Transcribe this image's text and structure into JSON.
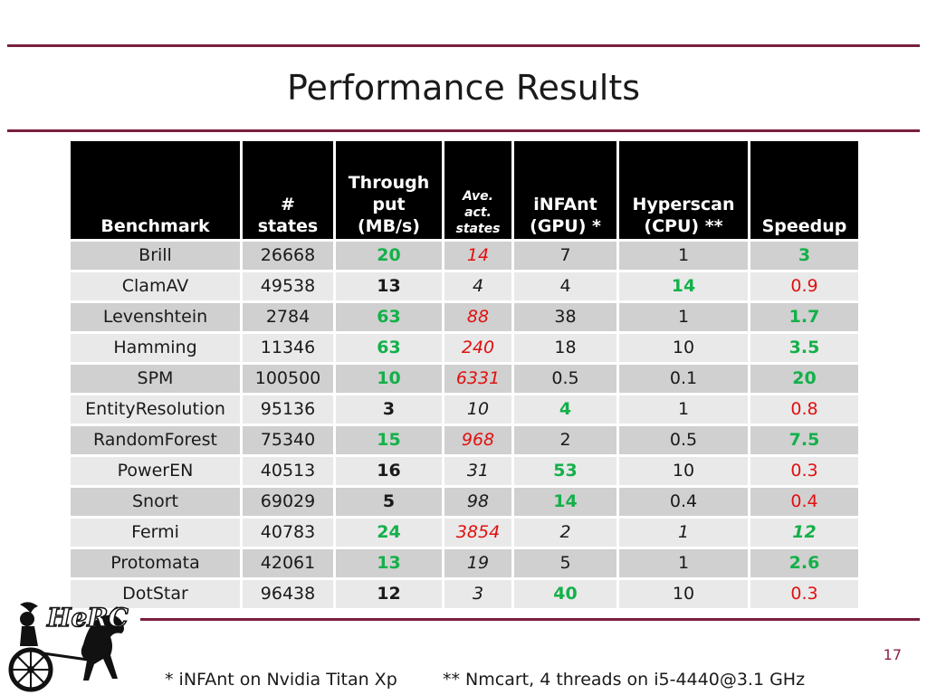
{
  "title": "Performance Results",
  "headers": {
    "benchmark": "Benchmark",
    "states": [
      "#",
      "states"
    ],
    "throughput": [
      "Through",
      "put",
      "(MB/s)"
    ],
    "ave_act": [
      "Ave.",
      "act.",
      "states"
    ],
    "infant": [
      "iNFAnt",
      "(GPU) *"
    ],
    "hyperscan": [
      "Hyperscan",
      "(CPU) **"
    ],
    "speedup": "Speedup"
  },
  "rows": [
    {
      "benchmark": "Brill",
      "states": "26668",
      "throughput": "20",
      "ave": "14",
      "infant": "7",
      "hyperscan": "1",
      "speedup": "3"
    },
    {
      "benchmark": "ClamAV",
      "states": "49538",
      "throughput": "13",
      "ave": "4",
      "infant": "4",
      "hyperscan": "14",
      "speedup": "0.9"
    },
    {
      "benchmark": "Levenshtein",
      "states": "2784",
      "throughput": "63",
      "ave": "88",
      "infant": "38",
      "hyperscan": "1",
      "speedup": "1.7"
    },
    {
      "benchmark": "Hamming",
      "states": "11346",
      "throughput": "63",
      "ave": "240",
      "infant": "18",
      "hyperscan": "10",
      "speedup": "3.5"
    },
    {
      "benchmark": "SPM",
      "states": "100500",
      "throughput": "10",
      "ave": "6331",
      "infant": "0.5",
      "hyperscan": "0.1",
      "speedup": "20"
    },
    {
      "benchmark": "EntityResolution",
      "states": "95136",
      "throughput": "3",
      "ave": "10",
      "infant": "4",
      "hyperscan": "1",
      "speedup": "0.8"
    },
    {
      "benchmark": "RandomForest",
      "states": "75340",
      "throughput": "15",
      "ave": "968",
      "infant": "2",
      "hyperscan": "0.5",
      "speedup": "7.5"
    },
    {
      "benchmark": "PowerEN",
      "states": "40513",
      "throughput": "16",
      "ave": "31",
      "infant": "53",
      "hyperscan": "10",
      "speedup": "0.3"
    },
    {
      "benchmark": "Snort",
      "states": "69029",
      "throughput": "5",
      "ave": "98",
      "infant": "14",
      "hyperscan": "0.4",
      "speedup": "0.4"
    },
    {
      "benchmark": "Fermi",
      "states": "40783",
      "throughput": "24",
      "ave": "3854",
      "infant": "2",
      "hyperscan": "1",
      "speedup": "12"
    },
    {
      "benchmark": "Protomata",
      "states": "42061",
      "throughput": "13",
      "ave": "19",
      "infant": "5",
      "hyperscan": "1",
      "speedup": "2.6"
    },
    {
      "benchmark": "DotStar",
      "states": "96438",
      "throughput": "12",
      "ave": "3",
      "infant": "40",
      "hyperscan": "10",
      "speedup": "0.3"
    }
  ],
  "footer": {
    "note_gpu": "* iNFAnt on Nvidia Titan Xp",
    "note_cpu": "** Nmcart, 4 threads on i5-4440@3.1 GHz"
  },
  "page_number": "17",
  "logo_text": "HeRC",
  "colors": {
    "accent_rule": "#7a1f3d",
    "highlight_green": "#14b04a",
    "highlight_red": "#e01010",
    "header_bg": "#000000"
  }
}
